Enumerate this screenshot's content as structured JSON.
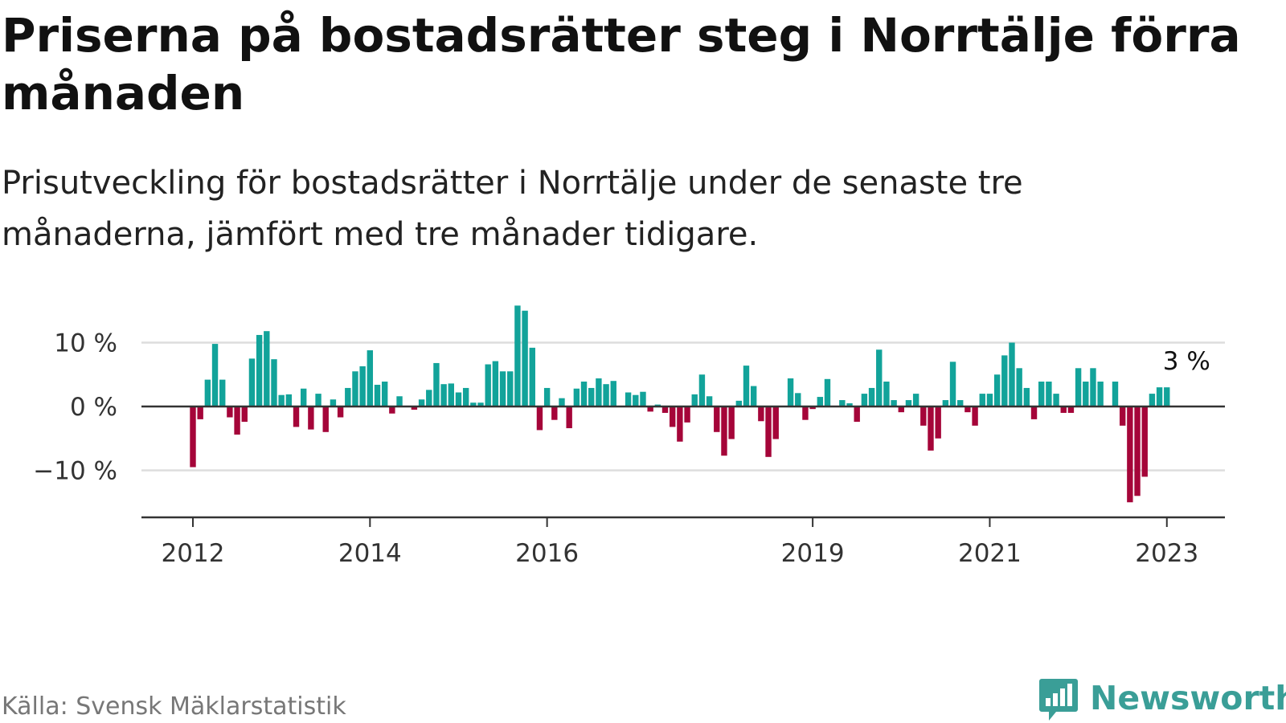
{
  "title": "Priserna på bostadsrätter steg i Norrtälje förra månaden",
  "subtitle": "Prisutveckling för bostadsrätter i Norrtälje under de senaste tre månaderna, jämfört med tre månader tidigare.",
  "source": "Källa: Svensk Mäklarstatistik",
  "logo": {
    "text": "Newsworthy",
    "icon": "bar-chart-speech-bubble-icon"
  },
  "colors": {
    "positive": "#12a39a",
    "negative": "#a50539",
    "grid": "#dddddd",
    "axis": "#333333",
    "brand": "#3a9e97"
  },
  "chart_data": {
    "type": "bar",
    "title": "",
    "xlabel": "",
    "ylabel": "",
    "ylim": [
      -17,
      16
    ],
    "grid": true,
    "y_ticks": [
      {
        "value": 10,
        "label": "10 %"
      },
      {
        "value": 0,
        "label": "0 %"
      },
      {
        "value": -10,
        "label": "−10 %"
      }
    ],
    "x_ticks": [
      {
        "date": "2012-01",
        "label": "2012"
      },
      {
        "date": "2014-01",
        "label": "2014"
      },
      {
        "date": "2016-01",
        "label": "2016"
      },
      {
        "date": "2019-01",
        "label": "2019"
      },
      {
        "date": "2021-01",
        "label": "2021"
      },
      {
        "date": "2023-01",
        "label": "2023"
      }
    ],
    "start_date": "2012-01",
    "values": [
      -9.5,
      -2,
      4.2,
      9.8,
      4.2,
      -1.7,
      -4.4,
      -2.4,
      7.5,
      11.2,
      11.8,
      7.4,
      1.8,
      1.9,
      -3.2,
      2.8,
      -3.6,
      2,
      -4,
      1.1,
      -1.7,
      2.9,
      5.5,
      6.3,
      8.8,
      3.4,
      3.9,
      -1.1,
      1.6,
      0,
      -0.5,
      1.1,
      2.6,
      6.8,
      3.5,
      3.6,
      2.2,
      2.9,
      0.6,
      0.6,
      6.6,
      7.1,
      5.5,
      5.5,
      15.8,
      15,
      9.2,
      -3.7,
      2.9,
      -2.1,
      1.3,
      -3.4,
      2.8,
      3.9,
      2.9,
      4.4,
      3.5,
      4,
      0,
      2.2,
      1.8,
      2.3,
      -0.8,
      0.3,
      -1,
      -3.2,
      -5.5,
      -2.5,
      1.9,
      5,
      1.6,
      -4,
      -7.7,
      -5.1,
      0.9,
      6.4,
      3.2,
      -2.3,
      -7.9,
      -5.1,
      0,
      4.4,
      2.1,
      -2.1,
      -0.4,
      1.5,
      4.3,
      0,
      1,
      0.5,
      -2.4,
      2,
      2.9,
      8.9,
      3.9,
      1,
      -0.9,
      1,
      2,
      -3,
      -6.9,
      -5,
      1,
      7,
      1,
      -0.9,
      -3,
      2,
      2,
      5,
      8,
      10,
      6,
      2.9,
      -2,
      3.9,
      3.9,
      2,
      -1,
      -1,
      6,
      3.9,
      6,
      3.9,
      0,
      3.9,
      -3,
      -15,
      -14,
      -11,
      2,
      3,
      3
    ],
    "annotations": [
      {
        "text": "3 %",
        "date": "2023-04"
      }
    ]
  }
}
